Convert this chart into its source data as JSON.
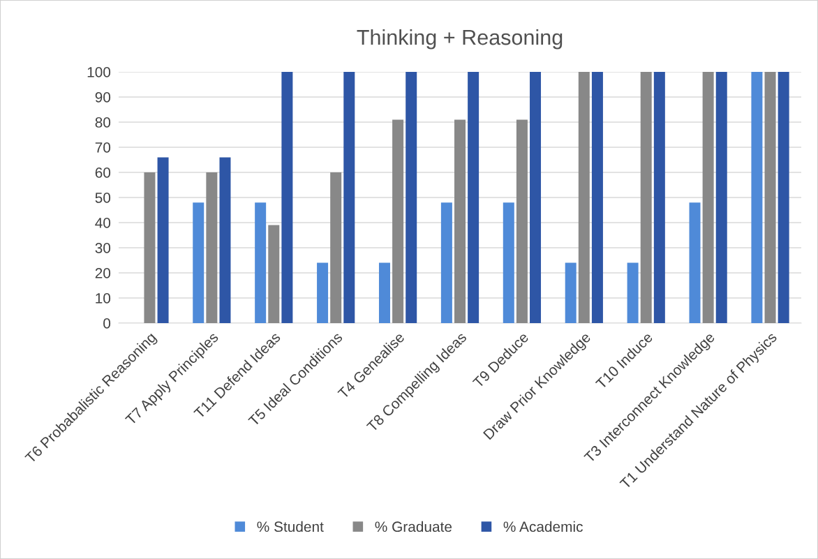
{
  "chart_data": {
    "type": "bar",
    "title": "Thinking + Reasoning",
    "categories": [
      "T6 Probabalistic Reasoning",
      "T7 Apply Principles",
      "T11 Defend Ideas",
      "T5 Ideal Conditions",
      "T4 Genealise",
      "T8 Compelling Ideas",
      "T9 Deduce",
      "Draw Prior Knowledge",
      "T10 Induce",
      "T3 Interconnect Knowledge",
      "T1 Understand Nature of Physics"
    ],
    "series": [
      {
        "name": "% Student",
        "color": "#4f8ad8",
        "values": [
          0,
          48,
          48,
          24,
          24,
          48,
          48,
          24,
          24,
          48,
          100
        ]
      },
      {
        "name": "% Graduate",
        "color": "#888888",
        "values": [
          60,
          60,
          39,
          60,
          81,
          81,
          81,
          100,
          100,
          100,
          100
        ]
      },
      {
        "name": "% Academic",
        "color": "#2e56a6",
        "values": [
          66,
          66,
          100,
          100,
          100,
          100,
          100,
          100,
          100,
          100,
          100
        ]
      }
    ],
    "ylim": [
      0,
      100
    ],
    "yticks": [
      0,
      10,
      20,
      30,
      40,
      50,
      60,
      70,
      80,
      90,
      100
    ],
    "grid": "y",
    "legend": "bottom"
  }
}
